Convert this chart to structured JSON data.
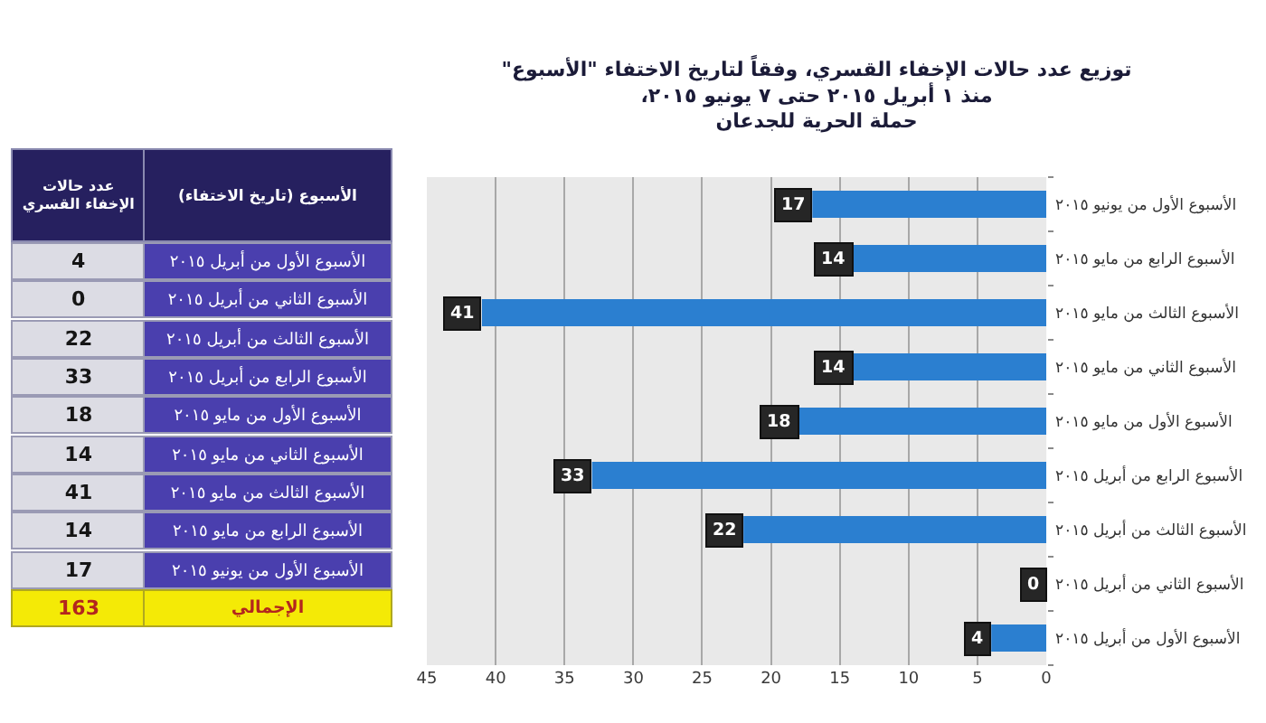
{
  "chart_data": [
    {
      "type": "bar",
      "orientation": "horizontal",
      "title": "توزيع عدد حالات الإخفاء القسري، وفقاً لتاريخ الاختفاء \"الأسبوع\"\nمنذ ١ أبريل ٢٠١٥ حتى ٧ يونيو ٢٠١٥،\nحملة الحرية للجدعان",
      "categories": [
        "الأسبوع الأول من يونيو ٢٠١٥",
        "الأسبوع الرابع من مايو ٢٠١٥",
        "الأسبوع الثالث من مايو ٢٠١٥",
        "الأسبوع الثاني من مايو ٢٠١٥",
        "الأسبوع الأول من مايو ٢٠١٥",
        "الأسبوع الرابع من أبريل ٢٠١٥",
        "الأسبوع الثالث من أبريل ٢٠١٥",
        "الأسبوع الثاني من أبريل ٢٠١٥",
        "الأسبوع الأول من أبريل ٢٠١٥"
      ],
      "values": [
        17,
        14,
        41,
        14,
        18,
        33,
        22,
        0,
        4
      ],
      "color": "#2b7fd0",
      "xlim": [
        45,
        0
      ],
      "xticks": [
        45,
        40,
        35,
        30,
        25,
        20,
        15,
        10,
        5,
        0
      ],
      "grid": "x",
      "data_labels": true
    },
    {
      "type": "other",
      "xlabel": "الأسبوع (تاريخ الاختفاء)",
      "ylabel": "عدد حالات\nالإخفاء القسري",
      "categories": [
        "الأسبوع الأول من أبريل ٢٠١٥",
        "الأسبوع الثاني من أبريل ٢٠١٥",
        "الأسبوع الثالث من أبريل ٢٠١٥",
        "الأسبوع الرابع من أبريل ٢٠١٥",
        "الأسبوع الأول من مايو ٢٠١٥",
        "الأسبوع الثاني من مايو ٢٠١٥",
        "الأسبوع الثالث من مايو ٢٠١٥",
        "الأسبوع الرابع من مايو ٢٠١٥",
        "الأسبوع الأول من يونيو ٢٠١٥"
      ],
      "values": [
        4,
        0,
        22,
        33,
        18,
        14,
        41,
        14,
        17
      ],
      "data_labels": true,
      "totals": [
        "163"
      ],
      "annotations": [
        "الإجمالي"
      ]
    }
  ]
}
